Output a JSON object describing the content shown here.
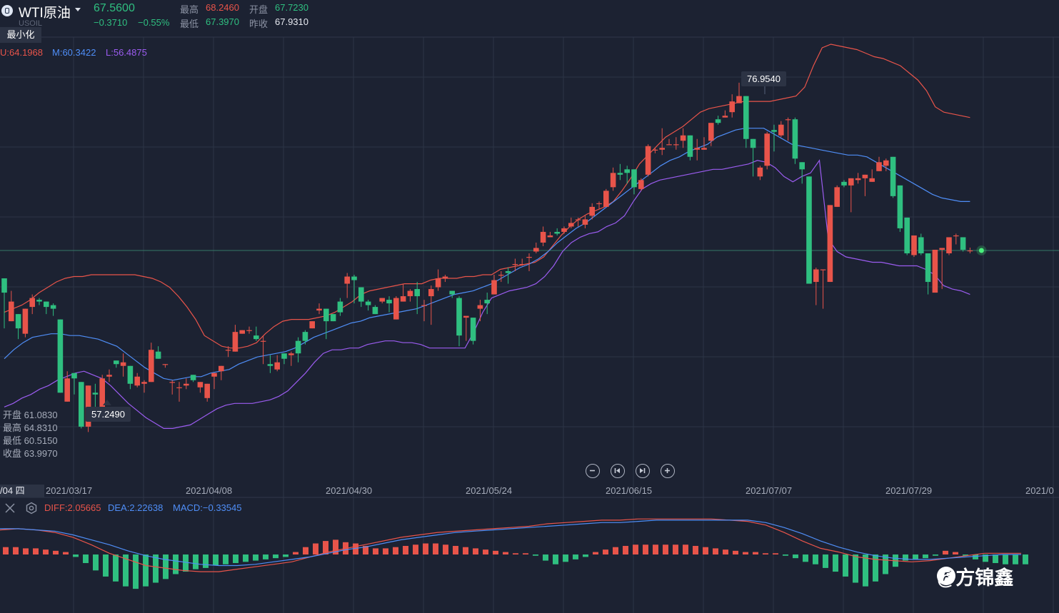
{
  "header": {
    "symbol": "WTI原油",
    "ticker": "USOIL",
    "price": "67.5600",
    "change": "−0.3710",
    "change_pct": "−0.55%",
    "high_label": "最高",
    "high_value": "68.2460",
    "open_label": "开盘",
    "open_value": "67.7230",
    "low_label": "最低",
    "low_value": "67.3970",
    "prev_label": "昨收",
    "prev_value": "67.9310",
    "minimize_label": "最小化"
  },
  "bollinger": {
    "upper": "U:64.1968",
    "middle": "M:60.3422",
    "lower": "L:56.4875"
  },
  "crosshair_ohlc": {
    "open": "开盘 61.0830",
    "high": "最高 64.8310",
    "low": "最低 60.5150",
    "close": "收盘 63.9970"
  },
  "annotations": {
    "max_price": "76.9540",
    "min_price": "57.2490"
  },
  "time_axis": {
    "current": "/04 四",
    "dates": [
      "2021/03/17",
      "2021/04/08",
      "2021/04/30",
      "2021/05/24",
      "2021/06/15",
      "2021/07/07",
      "2021/07/29",
      "2021/0"
    ]
  },
  "macd": {
    "diff": "DIFF:2.05665",
    "dea": "DEA:2.22638",
    "macd": "MACD:−0.33545"
  },
  "watermark": "@方锦鑫",
  "colors": {
    "up": "#e8544a",
    "down": "#2fbf80",
    "upper_band": "#e8544a",
    "middle_band": "#4f8ef7",
    "lower_band": "#9b5cf0",
    "background": "#1c2232"
  },
  "icons": [
    "info-icon",
    "caret-down-icon",
    "zoom-out-icon",
    "step-back-icon",
    "step-forward-icon",
    "zoom-in-icon",
    "close-icon",
    "settings-icon"
  ],
  "chart_data": {
    "type": "candlestick",
    "y_range": [
      54.5,
      79.5
    ],
    "candles": [
      [
        66.0,
        65.2,
        63.2,
        66.0
      ],
      [
        63.6,
        64.7,
        63.6,
        65.3
      ],
      [
        64.0,
        63.2,
        62.6,
        64.0
      ],
      [
        62.9,
        64.3,
        62.7,
        64.3
      ],
      [
        64.4,
        64.9,
        64.0,
        65.1
      ],
      [
        64.8,
        64.7,
        64.5,
        64.9
      ],
      [
        64.7,
        64.4,
        64.0,
        64.7
      ],
      [
        64.5,
        64.3,
        63.9,
        64.6
      ],
      [
        63.7,
        59.6,
        59.6,
        63.7
      ],
      [
        59.1,
        60.4,
        59.1,
        60.8
      ],
      [
        60.7,
        60.4,
        59.5,
        60.7
      ],
      [
        60.2,
        57.7,
        57.6,
        60.2
      ],
      [
        57.7,
        60.0,
        57.4,
        60.0
      ],
      [
        59.6,
        59.5,
        58.8,
        60.1
      ],
      [
        58.8,
        60.4,
        58.7,
        60.6
      ],
      [
        60.5,
        60.6,
        60.2,
        60.9
      ],
      [
        61.4,
        61.2,
        61.0,
        61.4
      ],
      [
        61.1,
        61.3,
        60.5,
        61.8
      ],
      [
        61.1,
        60.1,
        59.8,
        61.1
      ],
      [
        60.0,
        60.5,
        59.9,
        60.7
      ],
      [
        60.1,
        60.2,
        59.6,
        60.3
      ],
      [
        60.2,
        62.0,
        60.2,
        62.4
      ],
      [
        61.9,
        61.5,
        61.5,
        62.2
      ],
      [
        61.2,
        61.2,
        61.0,
        61.2
      ],
      [
        60.2,
        60.2,
        59.5,
        60.3
      ],
      [
        59.9,
        59.9,
        59.1,
        60.2
      ],
      [
        60.0,
        60.1,
        59.8,
        60.4
      ],
      [
        60.6,
        60.3,
        60.2,
        60.6
      ],
      [
        59.9,
        60.2,
        59.6,
        60.2
      ],
      [
        59.3,
        60.1,
        59.1,
        60.1
      ],
      [
        60.5,
        60.7,
        59.8,
        60.7
      ],
      [
        60.8,
        61.1,
        60.3,
        61.1
      ],
      [
        62.0,
        62.0,
        61.6,
        62.2
      ],
      [
        61.9,
        63.0,
        61.9,
        63.4
      ],
      [
        62.9,
        63.1,
        62.9,
        63.1
      ],
      [
        63.1,
        63.1,
        62.9,
        63.3
      ],
      [
        62.8,
        62.6,
        62.5,
        63.3
      ],
      [
        62.5,
        62.5,
        61.2,
        62.8
      ],
      [
        61.2,
        61.1,
        60.7,
        61.7
      ],
      [
        60.9,
        61.3,
        60.8,
        61.7
      ],
      [
        61.8,
        61.5,
        61.2,
        61.8
      ],
      [
        61.7,
        61.8,
        61.1,
        61.9
      ],
      [
        62.5,
        61.8,
        61.3,
        62.7
      ],
      [
        63.0,
        62.5,
        62.3,
        63.1
      ],
      [
        63.2,
        63.6,
        63.2,
        63.6
      ],
      [
        64.2,
        64.3,
        64.0,
        64.6
      ],
      [
        64.3,
        63.6,
        62.6,
        64.3
      ],
      [
        64.0,
        63.6,
        63.6,
        64.0
      ],
      [
        64.7,
        64.1,
        63.9,
        64.9
      ],
      [
        65.7,
        66.1,
        64.9,
        66.3
      ],
      [
        66.1,
        65.9,
        64.6,
        66.2
      ],
      [
        65.5,
        64.7,
        64.4,
        65.5
      ],
      [
        64.7,
        64.5,
        64.2,
        64.8
      ],
      [
        64.4,
        64.0,
        64.0,
        64.5
      ],
      [
        64.7,
        64.9,
        64.6,
        64.9
      ],
      [
        64.8,
        64.6,
        64.1,
        65.0
      ],
      [
        63.7,
        64.9,
        63.7,
        65.0
      ],
      [
        64.7,
        65.0,
        64.7,
        65.7
      ],
      [
        65.0,
        65.3,
        64.7,
        65.4
      ],
      [
        65.4,
        65.0,
        64.0,
        65.8
      ],
      [
        64.5,
        64.5,
        63.6,
        64.8
      ],
      [
        65.0,
        65.4,
        63.4,
        65.6
      ],
      [
        65.5,
        66.0,
        65.3,
        66.5
      ],
      [
        66.0,
        66.1,
        65.8,
        66.2
      ],
      [
        65.3,
        65.1,
        64.9,
        65.3
      ],
      [
        64.9,
        62.8,
        62.2,
        65.0
      ],
      [
        63.8,
        63.9,
        62.5,
        63.8
      ],
      [
        63.8,
        62.5,
        62.3,
        63.8
      ],
      [
        64.3,
        64.5,
        63.6,
        64.8
      ],
      [
        64.8,
        64.6,
        64.0,
        65.2
      ],
      [
        65.1,
        65.9,
        65.3,
        66.2
      ],
      [
        66.2,
        66.2,
        65.8,
        66.4
      ],
      [
        66.4,
        66.3,
        65.7,
        66.6
      ],
      [
        66.8,
        66.8,
        66.4,
        67.1
      ],
      [
        66.8,
        66.8,
        66.7,
        67.1
      ],
      [
        67.2,
        67.2,
        66.4,
        67.4
      ],
      [
        67.5,
        67.7,
        67.4,
        68.0
      ],
      [
        68.0,
        68.6,
        67.8,
        68.9
      ],
      [
        68.3,
        68.4,
        68.3,
        68.6
      ],
      [
        68.6,
        68.5,
        68.4,
        68.8
      ],
      [
        68.6,
        68.8,
        68.5,
        68.9
      ],
      [
        68.9,
        69.1,
        68.8,
        69.4
      ],
      [
        69.3,
        69.3,
        68.9,
        69.4
      ],
      [
        69.0,
        69.3,
        68.8,
        69.5
      ],
      [
        69.5,
        70.0,
        69.3,
        70.2
      ],
      [
        70.2,
        70.2,
        69.9,
        70.3
      ],
      [
        70.0,
        70.9,
        70.0,
        71.0
      ],
      [
        71.1,
        71.9,
        70.9,
        72.2
      ],
      [
        71.9,
        71.8,
        71.5,
        72.4
      ],
      [
        72.1,
        71.9,
        71.3,
        72.3
      ],
      [
        72.1,
        71.1,
        70.7,
        72.1
      ],
      [
        71.0,
        71.5,
        70.9,
        71.6
      ],
      [
        71.8,
        73.4,
        71.7,
        73.5
      ],
      [
        73.2,
        73.2,
        73.0,
        73.3
      ],
      [
        73.2,
        73.3,
        72.9,
        74.4
      ],
      [
        73.5,
        73.5,
        73.5,
        73.8
      ],
      [
        73.5,
        73.5,
        73.2,
        73.9
      ],
      [
        73.7,
        74.0,
        73.3,
        74.4
      ],
      [
        74.0,
        72.8,
        72.6,
        74.0
      ],
      [
        73.2,
        73.3,
        72.6,
        73.8
      ],
      [
        73.2,
        73.3,
        73.2,
        73.9
      ],
      [
        73.7,
        74.7,
        73.4,
        74.7
      ],
      [
        74.9,
        74.7,
        74.6,
        75.1
      ],
      [
        75.0,
        75.1,
        75.0,
        75.4
      ],
      [
        75.3,
        75.9,
        75.0,
        76.3
      ],
      [
        75.8,
        76.2,
        76.0,
        76.95
      ],
      [
        76.2,
        73.8,
        73.3,
        76.2
      ],
      [
        73.8,
        73.3,
        71.7,
        73.8
      ],
      [
        71.7,
        72.2,
        71.5,
        72.3
      ],
      [
        72.3,
        74.1,
        72.1,
        74.2
      ],
      [
        74.3,
        74.2,
        73.1,
        74.6
      ],
      [
        74.0,
        74.6,
        73.9,
        74.8
      ],
      [
        74.9,
        74.9,
        73.7,
        75.0
      ],
      [
        74.9,
        72.7,
        72.4,
        75.0
      ],
      [
        72.5,
        72.1,
        71.3,
        72.5
      ],
      [
        71.7,
        65.7,
        65.7,
        71.7
      ],
      [
        65.8,
        66.5,
        64.5,
        66.6
      ],
      [
        66.5,
        66.5,
        64.3,
        66.5
      ],
      [
        65.8,
        70.1,
        65.8,
        70.1
      ],
      [
        70.0,
        71.1,
        70.0,
        71.2
      ],
      [
        71.4,
        71.2,
        71.1,
        71.5
      ],
      [
        71.2,
        71.6,
        69.7,
        71.6
      ],
      [
        71.5,
        71.6,
        71.3,
        71.9
      ],
      [
        71.6,
        71.8,
        70.6,
        71.8
      ],
      [
        71.4,
        71.6,
        71.4,
        72.1
      ],
      [
        72.0,
        72.5,
        72.0,
        72.8
      ],
      [
        72.3,
        72.6,
        72.0,
        72.7
      ],
      [
        72.8,
        70.6,
        70.5,
        72.8
      ],
      [
        71.2,
        68.8,
        68.6,
        71.2
      ],
      [
        69.4,
        67.4,
        67.3,
        69.4
      ],
      [
        67.3,
        68.4,
        67.2,
        68.4
      ],
      [
        68.3,
        67.4,
        67.3,
        68.5
      ],
      [
        67.4,
        65.8,
        65.1,
        67.4
      ],
      [
        65.2,
        67.6,
        65.2,
        67.6
      ],
      [
        67.6,
        67.7,
        65.4,
        67.7
      ],
      [
        67.4,
        68.3,
        67.3,
        68.3
      ],
      [
        68.4,
        68.4,
        67.9,
        68.5
      ],
      [
        68.3,
        67.6,
        67.5,
        68.3
      ],
      [
        67.56,
        67.56,
        67.4,
        67.72
      ]
    ],
    "upper_band": [
      64.1,
      64.3,
      64.5,
      64.8,
      65.2,
      65.5,
      65.8,
      66.0,
      66.1,
      66.1,
      66.2,
      66.2,
      66.2,
      66.2,
      66.2,
      66.2,
      66.1,
      66.0,
      65.8,
      65.5,
      65.0,
      64.4,
      63.7,
      62.8,
      62.5,
      62.2,
      62.1,
      62.1,
      62.2,
      62.4,
      62.9,
      63.3,
      63.6,
      63.7,
      63.7,
      63.7,
      63.8,
      63.9,
      64.1,
      64.4,
      64.7,
      65.1,
      65.3,
      65.4,
      65.5,
      65.6,
      65.7,
      65.7,
      65.7,
      65.9,
      66.0,
      66.0,
      66.0,
      66.1,
      66.1,
      66.2,
      66.2,
      66.5,
      66.6,
      66.7,
      66.8,
      66.9,
      67.2,
      67.8,
      68.4,
      68.9,
      69.3,
      69.6,
      69.8,
      70.0,
      70.3,
      70.9,
      71.6,
      72.4,
      72.9,
      73.4,
      73.9,
      74.2,
      74.5,
      74.9,
      75.3,
      75.5,
      75.6,
      75.7,
      75.8,
      75.9,
      75.9,
      75.9,
      75.9,
      76.0,
      76.1,
      76.2,
      76.7,
      77.9,
      78.9,
      79.1,
      79.0,
      78.9,
      78.8,
      78.6,
      78.4,
      78.3,
      78.1,
      77.9,
      77.5,
      77.1,
      76.5,
      75.6,
      75.3,
      75.2,
      75.1,
      75.0
    ],
    "middle_band": [
      61.5,
      62.0,
      62.4,
      62.7,
      62.8,
      62.9,
      62.9,
      62.8,
      62.8,
      62.7,
      62.6,
      62.4,
      62.2,
      61.8,
      61.4,
      61.0,
      60.7,
      60.4,
      60.3,
      60.4,
      60.5,
      60.5,
      60.7,
      60.8,
      60.9,
      61.2,
      61.4,
      61.6,
      61.7,
      61.8,
      61.9,
      62.1,
      62.4,
      62.7,
      62.9,
      63.1,
      63.3,
      63.5,
      63.6,
      63.8,
      63.9,
      64.0,
      64.1,
      64.2,
      64.3,
      64.5,
      64.7,
      64.9,
      65.1,
      65.2,
      65.3,
      65.5,
      65.7,
      66.0,
      66.3,
      66.6,
      66.8,
      67.1,
      67.5,
      68.0,
      68.4,
      68.8,
      69.1,
      69.5,
      69.9,
      70.3,
      70.7,
      71.1,
      71.5,
      71.9,
      72.3,
      72.6,
      72.8,
      73.1,
      73.3,
      73.5,
      73.9,
      74.1,
      74.3,
      74.4,
      74.4,
      74.4,
      74.1,
      73.8,
      73.5,
      73.4,
      73.3,
      73.2,
      73.1,
      73.0,
      72.9,
      72.9,
      72.8,
      72.5,
      72.2,
      71.9,
      71.6,
      71.3,
      71.0,
      70.7,
      70.5,
      70.4,
      70.3,
      70.3
    ],
    "lower_band": [
      58.8,
      59.0,
      59.3,
      59.5,
      59.8,
      60.0,
      60.3,
      60.5,
      60.7,
      60.8,
      60.6,
      60.4,
      60.0,
      59.5,
      59.0,
      58.6,
      58.2,
      57.9,
      57.6,
      57.6,
      57.7,
      57.8,
      58.1,
      58.4,
      58.7,
      58.9,
      59.0,
      59.0,
      59.0,
      59.1,
      59.2,
      59.4,
      59.7,
      60.2,
      60.7,
      61.3,
      61.8,
      62.0,
      62.0,
      62.1,
      62.1,
      62.3,
      62.4,
      62.5,
      62.5,
      62.4,
      62.4,
      62.3,
      62.1,
      62.1,
      62.1,
      62.1,
      62.1,
      63.0,
      64.1,
      64.9,
      65.1,
      65.3,
      65.4,
      65.5,
      65.7,
      66.1,
      66.7,
      67.5,
      68.0,
      68.3,
      68.5,
      68.6,
      68.9,
      69.1,
      69.5,
      70.3,
      71.0,
      71.3,
      71.5,
      71.6,
      71.7,
      71.8,
      71.9,
      72.0,
      72.1,
      72.1,
      72.2,
      72.3,
      72.4,
      72.6,
      72.5,
      72.2,
      71.7,
      71.4,
      71.7,
      71.9,
      72.6,
      68.2,
      67.5,
      67.2,
      67.1,
      67.0,
      66.9,
      66.9,
      66.8,
      66.7,
      66.7,
      66.7,
      66.5,
      66.2,
      65.6,
      65.4,
      65.3,
      65.1
    ],
    "macd_histogram": [
      0.6,
      0.6,
      0.5,
      0.5,
      0.4,
      0.3,
      0.2,
      -0.2,
      -0.7,
      -1.3,
      -1.8,
      -2.2,
      -2.6,
      -2.8,
      -2.6,
      -2.3,
      -2.0,
      -1.6,
      -1.4,
      -1.2,
      -1.1,
      -0.9,
      -0.8,
      -0.7,
      -0.6,
      -0.5,
      -0.4,
      -0.3,
      -0.2,
      0.2,
      0.6,
      0.9,
      1.1,
      1.2,
      1.0,
      0.9,
      0.7,
      0.5,
      0.5,
      0.6,
      0.7,
      0.8,
      0.9,
      0.9,
      0.8,
      0.7,
      0.6,
      0.5,
      0.4,
      0.3,
      0.2,
      0.1,
      0.1,
      -0.1,
      -0.5,
      -0.8,
      -0.6,
      -0.4,
      -0.2,
      0.2,
      0.4,
      0.6,
      0.7,
      0.8,
      0.8,
      0.8,
      0.8,
      0.8,
      0.8,
      0.7,
      0.6,
      0.5,
      0.4,
      0.3,
      0.2,
      0.2,
      0.1,
      0.1,
      -0.1,
      -0.3,
      -0.6,
      -0.8,
      -1.1,
      -1.4,
      -1.8,
      -2.3,
      -2.6,
      -2.2,
      -1.6,
      -1.0,
      -0.5,
      -0.4,
      -0.3,
      -0.1,
      0.3,
      0.2,
      -0.1,
      -0.4,
      -0.6,
      -0.7,
      -0.8,
      -0.8,
      -0.8
    ],
    "diff_line": [
      2.0,
      2.1,
      2.0,
      1.8,
      1.4,
      0.8,
      0.1,
      -0.4,
      -0.9,
      -1.1,
      -1.3,
      -1.4,
      -1.4,
      -1.2,
      -1.0,
      -0.8,
      -0.6,
      -0.2,
      0.2,
      0.5,
      0.8,
      1.1,
      1.4,
      1.6,
      1.8,
      1.9,
      2.0,
      2.1,
      2.2,
      2.3,
      2.5,
      2.6,
      2.7,
      2.8,
      2.8,
      2.9,
      2.9,
      2.9,
      2.9,
      2.9,
      2.8,
      2.7,
      2.4,
      1.8,
      1.1,
      0.5,
      0.2,
      -0.2,
      -0.4,
      -0.5,
      -0.6,
      -0.5,
      -0.3,
      -0.1,
      0.1,
      0.1,
      0.1
    ],
    "dea_line": [
      2.1,
      2.1,
      2.0,
      1.9,
      1.6,
      1.2,
      0.8,
      0.3,
      -0.1,
      -0.4,
      -0.6,
      -0.8,
      -0.9,
      -0.9,
      -0.8,
      -0.6,
      -0.4,
      -0.2,
      0.1,
      0.4,
      0.6,
      0.9,
      1.2,
      1.4,
      1.6,
      1.8,
      1.9,
      2.0,
      2.1,
      2.2,
      2.3,
      2.4,
      2.5,
      2.6,
      2.6,
      2.7,
      2.8,
      2.8,
      2.8,
      2.8,
      2.8,
      2.8,
      2.6,
      2.2,
      1.7,
      1.1,
      0.6,
      0.2,
      -0.1,
      -0.3,
      -0.4,
      -0.4,
      -0.3,
      -0.2,
      -0.1,
      0.0,
      0.0
    ],
    "macd_range": [
      -3.2,
      3.2
    ]
  }
}
